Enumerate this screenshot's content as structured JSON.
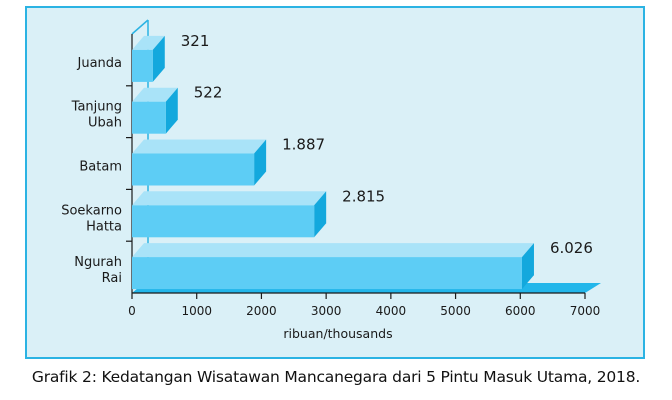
{
  "caption": "Grafik 2: Kedatangan Wisatawan Mancanegara dari 5 Pintu Masuk Utama, 2018.",
  "colors": {
    "panel_bg": "#daf0f7",
    "panel_border": "#2bb3e3",
    "bar_front": "#5dcdf5",
    "bar_top": "#a9e3f8",
    "bar_side": "#13a8dd",
    "floor": "#22b6ea",
    "axis": "#1a1a1a"
  },
  "chart_data": {
    "type": "bar",
    "orientation": "horizontal",
    "categories": [
      [
        "Juanda"
      ],
      [
        "Tanjung",
        "Ubah"
      ],
      [
        "Batam"
      ],
      [
        "Soekarno",
        "Hatta"
      ],
      [
        "Ngurah",
        "Rai"
      ]
    ],
    "values": [
      321,
      522,
      1887,
      2815,
      6026
    ],
    "value_labels": [
      "321",
      "522",
      "1.887",
      "2.815",
      "6.026"
    ],
    "xlim": [
      0,
      7000
    ],
    "xticks": [
      0,
      1000,
      2000,
      3000,
      4000,
      5000,
      6000,
      7000
    ],
    "xlabel": "ribuan/thousands",
    "title": "",
    "ylabel": "",
    "grid": false,
    "legend": "none",
    "style": "3d"
  }
}
